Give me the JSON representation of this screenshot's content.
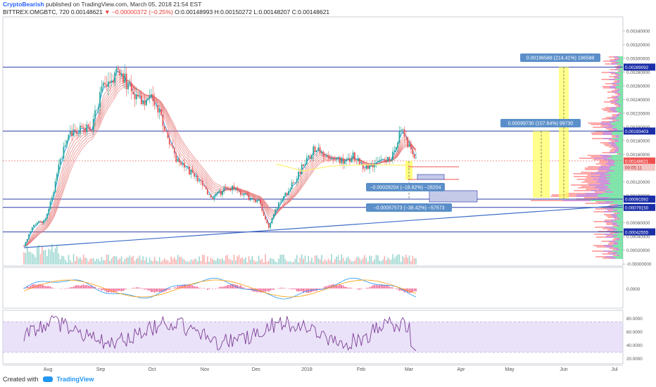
{
  "header": {
    "author": "CryptoBearish",
    "published": "published on TradingView.com, March 05, 2018 21:54 EST",
    "symbol": "BITTREX:OMGBTC, 720",
    "last": "0.00148621",
    "change": "−0.00000372 (−0.25%)",
    "O": "0.00148993",
    "H": "0.00150272",
    "L": "0.00148207",
    "C": "0.00148621"
  },
  "footer": {
    "created_with": "Created with",
    "brand": "TradingView"
  },
  "colors": {
    "up": "#26a69a",
    "down": "#ef5350",
    "ema": "#e57373",
    "sma": "#2196f3",
    "hline": "#2d3fa8",
    "trend": "#3f6fc9",
    "measure": "#ffff66",
    "vp_buy": "#00c853",
    "vp_sell": "#ff5252",
    "vp_mid": "#9c27b0",
    "rsi": "#7e3f98",
    "rsi_band": "#e1d5f5",
    "hist": "#e91e63"
  },
  "price_axis": [
    "0.00340000",
    "0.00320000",
    "0.00300000",
    "0.00280000",
    "0.00260000",
    "0.00240000",
    "0.00220000",
    "0.00200000",
    "0.00180000",
    "0.00160000",
    "0.00140000",
    "0.00120000",
    "0.00100000",
    "0.00080000",
    "0.00060000",
    "0.00040000",
    "0.00020000",
    "-0.00000000"
  ],
  "level_labels": [
    {
      "text": "0.00289092",
      "kind": "hline"
    },
    {
      "text": "0.00193403",
      "kind": "hline"
    },
    {
      "text": "0.00148621",
      "kind": "last"
    },
    {
      "text": "00:05:11",
      "kind": "timer"
    },
    {
      "text": "0.00091592",
      "kind": "hline"
    },
    {
      "text": "0.00079150",
      "kind": "hline"
    },
    {
      "text": "0.00042555",
      "kind": "hline"
    }
  ],
  "time_axis": [
    "Aug",
    "Sep",
    "Oct",
    "Nov",
    "Dec",
    "2018",
    "Feb",
    "Mar",
    "Apr",
    "May",
    "Jun",
    "Jul"
  ],
  "macd_axis": [
    "0.0000"
  ],
  "rsi_axis": [
    "80.0000",
    "60.0000",
    "40.0000",
    "20.0000"
  ],
  "measure_labels": [
    "0.00196588 (214.41%) 196588",
    "0.00099730 (107.84%) 99730",
    "−0.00028204 (−18.82%) −28204",
    "−0.00057573 (−38.42%) −57573"
  ],
  "chart_data": {
    "type": "candlestick",
    "title": "BITTREX:OMGBTC, 720",
    "ylim": [
      0,
      0.0035
    ],
    "x": [
      "Jul",
      "Aug",
      "Sep",
      "Oct",
      "Nov",
      "Dec",
      "2018",
      "Feb",
      "Mar"
    ],
    "close_path": [
      {
        "t": "Jul 20",
        "v": 0.00022
      },
      {
        "t": "Jul 25",
        "v": 0.00055
      },
      {
        "t": "Jul 30",
        "v": 0.00058
      },
      {
        "t": "Aug 3",
        "v": 0.0009
      },
      {
        "t": "Aug 8",
        "v": 0.00145
      },
      {
        "t": "Aug 13",
        "v": 0.0019
      },
      {
        "t": "Aug 20",
        "v": 0.00195
      },
      {
        "t": "Aug 27",
        "v": 0.00198
      },
      {
        "t": "Sep 1",
        "v": 0.0025
      },
      {
        "t": "Sep 7",
        "v": 0.0027
      },
      {
        "t": "Sep 13",
        "v": 0.00285
      },
      {
        "t": "Sep 18",
        "v": 0.0026
      },
      {
        "t": "Sep 25",
        "v": 0.0024
      },
      {
        "t": "Oct 1",
        "v": 0.00245
      },
      {
        "t": "Oct 8",
        "v": 0.002
      },
      {
        "t": "Oct 15",
        "v": 0.0015
      },
      {
        "t": "Oct 22",
        "v": 0.00135
      },
      {
        "t": "Oct 29",
        "v": 0.0012
      },
      {
        "t": "Nov 5",
        "v": 0.0009
      },
      {
        "t": "Nov 12",
        "v": 0.00105
      },
      {
        "t": "Nov 19",
        "v": 0.0011
      },
      {
        "t": "Nov 26",
        "v": 0.00095
      },
      {
        "t": "Dec 3",
        "v": 0.00088
      },
      {
        "t": "Dec 10",
        "v": 0.0005
      },
      {
        "t": "Dec 17",
        "v": 0.00085
      },
      {
        "t": "Dec 24",
        "v": 0.00105
      },
      {
        "t": "Dec 31",
        "v": 0.0013
      },
      {
        "t": "Jan 5",
        "v": 0.00165
      },
      {
        "t": "Jan 12",
        "v": 0.0016
      },
      {
        "t": "Jan 20",
        "v": 0.0015
      },
      {
        "t": "Jan 28",
        "v": 0.00155
      },
      {
        "t": "Feb 5",
        "v": 0.00135
      },
      {
        "t": "Feb 12",
        "v": 0.0015
      },
      {
        "t": "Feb 20",
        "v": 0.00155
      },
      {
        "t": "Feb 27",
        "v": 0.00195
      },
      {
        "t": "Mar 3",
        "v": 0.0016
      },
      {
        "t": "Mar 5",
        "v": 0.00149
      }
    ],
    "horizontal_levels": [
      0.00289092,
      0.00193403,
      0.00091592,
      0.0007915,
      0.00042555
    ],
    "last_price": 0.00148621,
    "rsi_levels": [
      70,
      30
    ],
    "rsi_ylim": [
      15,
      85
    ]
  }
}
